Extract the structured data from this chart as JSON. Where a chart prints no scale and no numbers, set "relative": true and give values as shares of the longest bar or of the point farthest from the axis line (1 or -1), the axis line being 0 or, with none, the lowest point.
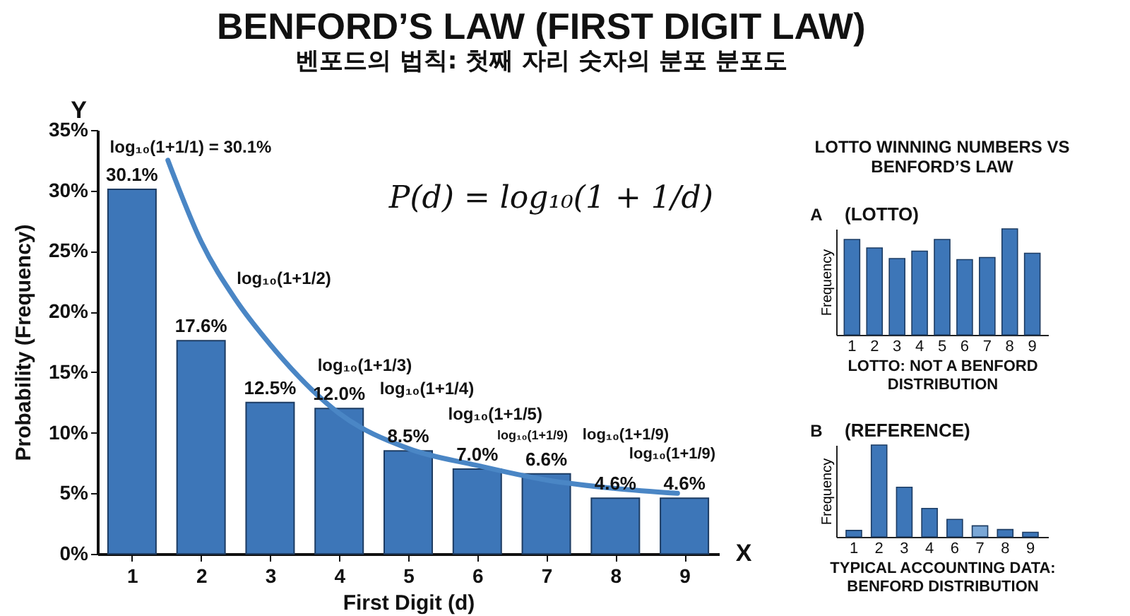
{
  "chart_data": [
    {
      "type": "bar",
      "title": "BENFORD’S LAW (FIRST DIGIT LAW)",
      "subtitle": "벤포드의 법칙: 첫째 자리 숫자의 분포 분포도",
      "xlabel": "First Digit (d)",
      "ylabel": "Probability (Frequency)",
      "x": [
        1,
        2,
        3,
        4,
        5,
        6,
        7,
        8,
        9
      ],
      "xlim": [
        0.5,
        9.5
      ],
      "xticks": [
        1,
        2,
        3,
        4,
        5,
        6,
        7,
        8,
        9
      ],
      "ylim": [
        0,
        35
      ],
      "yticks": [
        {
          "value": 0,
          "label": "0%"
        },
        {
          "value": 5,
          "label": "5%"
        },
        {
          "value": 10,
          "label": "10%"
        },
        {
          "value": 15,
          "label": "15%"
        },
        {
          "value": 20,
          "label": "20%"
        },
        {
          "value": 25,
          "label": "25%"
        },
        {
          "value": 30,
          "label": "30%"
        },
        {
          "value": 35,
          "label": "35%"
        }
      ],
      "series": [
        {
          "color": "#3d76b8",
          "values": [
            30.1,
            17.6,
            12.5,
            12.0,
            8.5,
            7.0,
            6.6,
            4.6,
            4.6
          ],
          "value_labels": [
            "30.1%",
            "17.6%",
            "12.5%",
            "12.0%",
            "8.5%",
            "7.0%",
            "6.6%",
            "4.6%",
            "4.6%"
          ]
        },
        {
          "type": "line",
          "color": "#4a86c5",
          "x": [
            1.52,
            2,
            2.5,
            3,
            4,
            5,
            6,
            7,
            8,
            8.9
          ],
          "values": [
            32.5,
            25.8,
            21.0,
            17.3,
            11.6,
            8.7,
            7.3,
            6.1,
            5.4,
            5.0
          ]
        }
      ],
      "annotations": [
        "P(d) = log₁₀(1 + 1/d)",
        "Y",
        "X",
        "log₁₀(1+1/1) = 30.1%",
        "log₁₀(1+1/2)",
        "log₁₀(1+1/3)",
        "log₁₀(1+1/4)",
        "log₁₀(1+1/5)",
        "log₁₀(1+1/9)",
        "log₁₀(1+1/9)",
        "log₁₀(1+1/9)"
      ]
    },
    {
      "type": "bar",
      "relative": true,
      "title": "LOTTO WINNING NUMBERS VS BENFORD’S LAW",
      "subtitle": "(LOTTO)",
      "ylabel": "Frequency",
      "xlabel": "LOTTO: NOT A BENFORD DISTRIBUTION",
      "categories": [
        "1",
        "2",
        "3",
        "4",
        "5",
        "6",
        "7",
        "8",
        "9"
      ],
      "color": "#3d76b8",
      "values": [
        0.9,
        0.82,
        0.72,
        0.79,
        0.9,
        0.71,
        0.73,
        1,
        0.77
      ],
      "annotations": [
        "A"
      ]
    },
    {
      "type": "bar",
      "relative": true,
      "subtitle": "(REFERENCE)",
      "ylabel": "Frequency",
      "xlabel": "TYPICAL ACCOUNTING DATA: BENFORD DISTRIBUTION",
      "categories": [
        "1",
        "2",
        "3",
        "4",
        "6",
        "7",
        "8",
        "9"
      ],
      "colors": [
        "#3d76b8",
        "#3d76b8",
        "#3d76b8",
        "#3d76b8",
        "#3d76b8",
        "#7aa7d6",
        "#3d76b8",
        "#3d76b8"
      ],
      "values": [
        0.07,
        1,
        0.54,
        0.31,
        0.19,
        0.12,
        0.08,
        0.05
      ],
      "annotations": [
        "B"
      ]
    }
  ]
}
